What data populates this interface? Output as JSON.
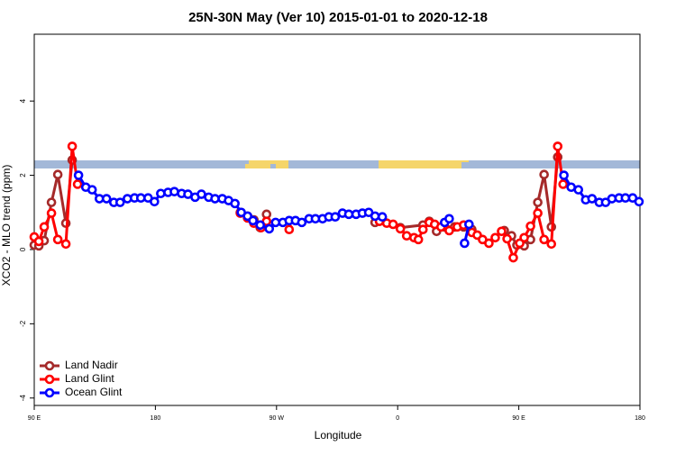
{
  "chart_data": {
    "type": "line",
    "title": "25N-30N May (Ver 10)   2015-01-01 to 2020-12-18",
    "x_label": "Longitude",
    "y_label": "XCO2 - MLO trend (ppm)",
    "xlim": [
      90,
      540
    ],
    "ylim": [
      -4.2,
      5.8
    ],
    "xticks": [
      {
        "value": 90,
        "label": "90 E"
      },
      180,
      {
        "value": 270,
        "label": "90 W"
      },
      {
        "value": 360,
        "label": "0"
      },
      {
        "value": 450,
        "label": "90 E"
      },
      {
        "value": 540,
        "label": "180"
      }
    ],
    "yticks": [
      -4,
      -2,
      0,
      2,
      4
    ],
    "legend": "bottom-left",
    "series": [
      {
        "name": "Land Nadir",
        "color": "#a52a2a",
        "x": [
          90,
          93.4,
          97.4,
          102.8,
          107.5,
          113.5,
          118.2,
          240,
          243.1,
          248.5,
          253.2,
          257.9,
          262.6,
          300,
          343.2,
          348.6,
          362.0,
          378.8,
          383.5,
          388.9,
          394.9,
          402.3,
          409.0,
          415.1,
          430,
          439.2,
          444.6,
          448.6,
          454.0,
          458.7,
          464.1,
          468.8,
          474.2,
          478.9
        ],
        "values": [
          0.12,
          0.1,
          0.24,
          1.27,
          2.02,
          0.71,
          2.41,
          null,
          1.0,
          0.9,
          0.8,
          0.59,
          0.95,
          null,
          0.73,
          0.8,
          0.59,
          0.66,
          0.76,
          0.49,
          0.61,
          0.61,
          0.61,
          0.54,
          null,
          0.51,
          0.37,
          0.12,
          0.1,
          0.27,
          1.27,
          2.02,
          0.61,
          2.49
        ]
      },
      {
        "name": "Land Glint",
        "color": "#ff0000",
        "x": [
          90,
          93.4,
          97.4,
          102.8,
          107.5,
          113.5,
          118.2,
          122.2,
          240,
          243.1,
          248.5,
          253.2,
          258.6,
          262.6,
          270,
          279.4,
          300,
          346.5,
          351.9,
          356.6,
          362.0,
          366.7,
          372.1,
          375.4,
          378.8,
          383.5,
          387.5,
          392.2,
          398.3,
          404.3,
          409.0,
          415.1,
          419.1,
          423.1,
          427.8,
          432.5,
          437.2,
          441.3,
          445.9,
          450.7,
          454.0,
          458.7,
          464.1,
          468.8,
          474.2,
          478.9,
          482.9
        ],
        "values": [
          0.34,
          0.22,
          0.61,
          0.98,
          0.27,
          0.15,
          2.78,
          1.76,
          null,
          0.98,
          0.85,
          0.71,
          0.59,
          0.76,
          null,
          0.54,
          null,
          0.76,
          0.71,
          0.68,
          0.56,
          0.37,
          0.32,
          0.27,
          0.54,
          0.73,
          0.68,
          0.61,
          0.51,
          0.61,
          0.66,
          0.46,
          0.39,
          0.27,
          0.17,
          0.32,
          0.49,
          0.29,
          -0.22,
          0.17,
          0.32,
          0.63,
          0.98,
          0.27,
          0.15,
          2.78,
          1.76
        ]
      },
      {
        "name": "Ocean Glint",
        "color": "#0000ff",
        "x": [
          122.9,
          128.3,
          133.0,
          138.4,
          143.7,
          149.1,
          153.8,
          159.2,
          164.5,
          169.2,
          174.6,
          179.3,
          184.0,
          189.4,
          194.1,
          199.5,
          204.2,
          209.5,
          214.2,
          219.6,
          224.3,
          229.7,
          234.4,
          239.1,
          243.8,
          248.5,
          252.5,
          257.9,
          264.6,
          269.3,
          274.7,
          279.4,
          284.1,
          288.8,
          294.2,
          298.9,
          304.2,
          308.9,
          313.6,
          319.0,
          323.7,
          329.1,
          333.8,
          338.5,
          343.2,
          348.6,
          370,
          394.9,
          398.3,
          405,
          409.7,
          413.0,
          450,
          483.5,
          488.9,
          494.3,
          499.7,
          504.4,
          509.8,
          514.5,
          519.2,
          524.5,
          529.2,
          534.6,
          539.3
        ],
        "values": [
          2.0,
          1.68,
          1.61,
          1.37,
          1.37,
          1.27,
          1.27,
          1.37,
          1.39,
          1.39,
          1.39,
          1.29,
          1.51,
          1.54,
          1.56,
          1.51,
          1.49,
          1.41,
          1.49,
          1.41,
          1.37,
          1.37,
          1.32,
          1.24,
          1.0,
          0.9,
          0.78,
          0.66,
          0.56,
          0.73,
          0.73,
          0.78,
          0.78,
          0.73,
          0.83,
          0.83,
          0.83,
          0.88,
          0.88,
          0.98,
          0.95,
          0.95,
          0.98,
          1.0,
          0.9,
          0.88,
          null,
          0.73,
          0.83,
          null,
          0.17,
          0.68,
          null,
          2.0,
          1.68,
          1.61,
          1.34,
          1.37,
          1.27,
          1.27,
          1.37,
          1.39,
          1.39,
          1.39,
          1.29
        ]
      }
    ]
  }
}
